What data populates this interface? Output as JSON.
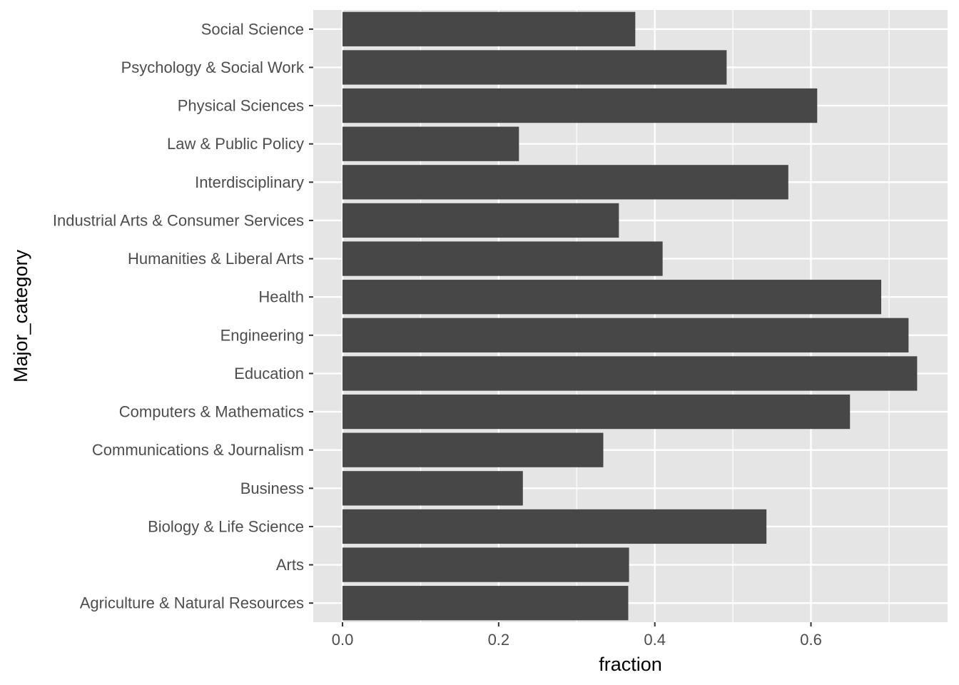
{
  "chart_data": {
    "type": "bar",
    "orientation": "horizontal",
    "xlabel": "fraction",
    "ylabel": "Major_category",
    "xlim": [
      -0.0375,
      0.775
    ],
    "xticks": [
      0.0,
      0.2,
      0.4,
      0.6
    ],
    "xtick_labels": [
      "0.0",
      "0.2",
      "0.4",
      "0.6"
    ],
    "grid": true,
    "categories": [
      "Agriculture & Natural Resources",
      "Arts",
      "Biology & Life Science",
      "Business",
      "Communications & Journalism",
      "Computers & Mathematics",
      "Education",
      "Engineering",
      "Health",
      "Humanities & Liberal Arts",
      "Industrial Arts & Consumer Services",
      "Interdisciplinary",
      "Law & Public Policy",
      "Physical Sciences",
      "Psychology & Social Work",
      "Social Science"
    ],
    "values": [
      0.366,
      0.367,
      0.543,
      0.231,
      0.334,
      0.65,
      0.736,
      0.725,
      0.69,
      0.41,
      0.354,
      0.571,
      0.226,
      0.608,
      0.492,
      0.375
    ],
    "colors": {
      "panel": "#e5e5e5",
      "grid_major": "#ffffff",
      "bar": "#474747",
      "tick_text": "#4d4d4d",
      "tick_mark": "#333333"
    }
  }
}
